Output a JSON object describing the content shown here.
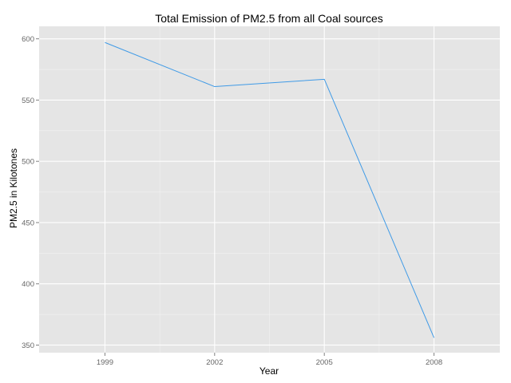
{
  "chart_data": {
    "type": "line",
    "title": "Total Emission of PM2.5 from all Coal sources",
    "xlabel": "Year",
    "ylabel": "PM2.5 in Kilotones",
    "categories": [
      "1999",
      "2002",
      "2005",
      "2008"
    ],
    "series": [
      {
        "values": [
          597,
          561,
          567,
          356
        ]
      }
    ],
    "yticks": [
      350,
      400,
      450,
      500,
      550,
      600
    ],
    "ytick_labels": [
      "350",
      "400",
      "450",
      "500",
      "550",
      "600"
    ],
    "ylim": [
      343.8,
      610.2
    ],
    "grid": true,
    "colors": {
      "panel_background": "#e5e5e5",
      "major_grid": "#ffffff",
      "minor_grid": "#f2f2f2",
      "line": "#3f9ae6",
      "tick_text": "#666666",
      "tick_mark": "#808080"
    }
  }
}
